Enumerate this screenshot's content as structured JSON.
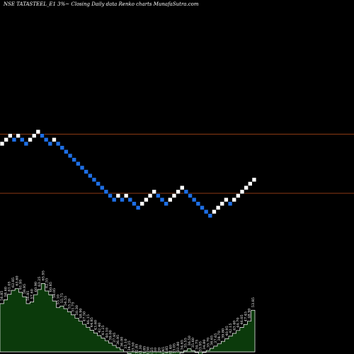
{
  "header": {
    "title": "NSE TATASTEEL_E1 3%~  Closing Daily data  Renko  charts MunafaSutra.com"
  },
  "colors": {
    "background": "#000000",
    "up_brick": "#ffffff",
    "down_brick": "#1e6fe6",
    "reference_line": "#8b3a14",
    "volume_fill": "#0b3a0b",
    "volume_outline": "#ffffff"
  },
  "chart_data": {
    "type": "renko",
    "brick_size": "3%",
    "bricks": [
      {
        "dir": "up",
        "level": 0
      },
      {
        "dir": "up",
        "level": 1
      },
      {
        "dir": "up",
        "level": 2
      },
      {
        "dir": "down",
        "level": 1
      },
      {
        "dir": "up",
        "level": 2
      },
      {
        "dir": "down",
        "level": 1
      },
      {
        "dir": "down",
        "level": 0
      },
      {
        "dir": "up",
        "level": 1
      },
      {
        "dir": "up",
        "level": 2
      },
      {
        "dir": "up",
        "level": 3
      },
      {
        "dir": "down",
        "level": 2
      },
      {
        "dir": "down",
        "level": 1
      },
      {
        "dir": "down",
        "level": 0
      },
      {
        "dir": "up",
        "level": 1
      },
      {
        "dir": "down",
        "level": 0
      },
      {
        "dir": "down",
        "level": -1
      },
      {
        "dir": "down",
        "level": -2
      },
      {
        "dir": "down",
        "level": -3
      },
      {
        "dir": "down",
        "level": -4
      },
      {
        "dir": "down",
        "level": -5
      },
      {
        "dir": "down",
        "level": -6
      },
      {
        "dir": "down",
        "level": -7
      },
      {
        "dir": "down",
        "level": -8
      },
      {
        "dir": "down",
        "level": -9
      },
      {
        "dir": "down",
        "level": -10
      },
      {
        "dir": "down",
        "level": -11
      },
      {
        "dir": "down",
        "level": -12
      },
      {
        "dir": "down",
        "level": -13
      },
      {
        "dir": "down",
        "level": -14
      },
      {
        "dir": "up",
        "level": -13
      },
      {
        "dir": "down",
        "level": -14
      },
      {
        "dir": "up",
        "level": -13
      },
      {
        "dir": "down",
        "level": -14
      },
      {
        "dir": "down",
        "level": -15
      },
      {
        "dir": "down",
        "level": -16
      },
      {
        "dir": "up",
        "level": -15
      },
      {
        "dir": "up",
        "level": -14
      },
      {
        "dir": "up",
        "level": -13
      },
      {
        "dir": "up",
        "level": -12
      },
      {
        "dir": "down",
        "level": -13
      },
      {
        "dir": "down",
        "level": -14
      },
      {
        "dir": "down",
        "level": -15
      },
      {
        "dir": "up",
        "level": -14
      },
      {
        "dir": "up",
        "level": -13
      },
      {
        "dir": "up",
        "level": -12
      },
      {
        "dir": "up",
        "level": -11
      },
      {
        "dir": "down",
        "level": -12
      },
      {
        "dir": "down",
        "level": -13
      },
      {
        "dir": "down",
        "level": -14
      },
      {
        "dir": "down",
        "level": -15
      },
      {
        "dir": "down",
        "level": -16
      },
      {
        "dir": "down",
        "level": -17
      },
      {
        "dir": "down",
        "level": -18
      },
      {
        "dir": "up",
        "level": -17
      },
      {
        "dir": "up",
        "level": -16
      },
      {
        "dir": "up",
        "level": -15
      },
      {
        "dir": "up",
        "level": -14
      },
      {
        "dir": "down",
        "level": -15
      },
      {
        "dir": "up",
        "level": -14
      },
      {
        "dir": "up",
        "level": -13
      },
      {
        "dir": "up",
        "level": -12
      },
      {
        "dir": "up",
        "level": -11
      },
      {
        "dir": "up",
        "level": -10
      },
      {
        "dir": "up",
        "level": -9
      }
    ],
    "reference_lines": [
      {
        "level": 2.4
      },
      {
        "level": -12.4
      }
    ],
    "volume_labels": [
      "56.85",
      "58.60",
      "61.05",
      "62.85",
      "63.60",
      "61.95",
      "59.95",
      "56.85",
      "57.60",
      "60.90",
      "63.25",
      "65.95",
      "62.55",
      "60.85",
      "58.05",
      "55.10",
      "55.75",
      "54.55",
      "53.20",
      "51.75",
      "50.30",
      "48.90",
      "47.50",
      "46.15",
      "44.85",
      "43.60",
      "42.40",
      "41.25",
      "40.10",
      "39.00",
      "37.95",
      "36.95",
      "36.00",
      "35.10",
      "34.25",
      "33.50",
      "32.85",
      "32.30",
      "31.85",
      "31.50",
      "31.25",
      "31.10",
      "31.20",
      "31.45",
      "31.85",
      "32.40",
      "33.05",
      "33.80",
      "34.65",
      "35.55",
      "36.50",
      "35.60",
      "34.75",
      "33.95",
      "34.80",
      "35.70",
      "36.65",
      "37.65",
      "38.70",
      "39.80",
      "40.95",
      "42.15",
      "43.40",
      "44.70",
      "46.05",
      "47.45",
      "48.90",
      "53.85"
    ]
  }
}
